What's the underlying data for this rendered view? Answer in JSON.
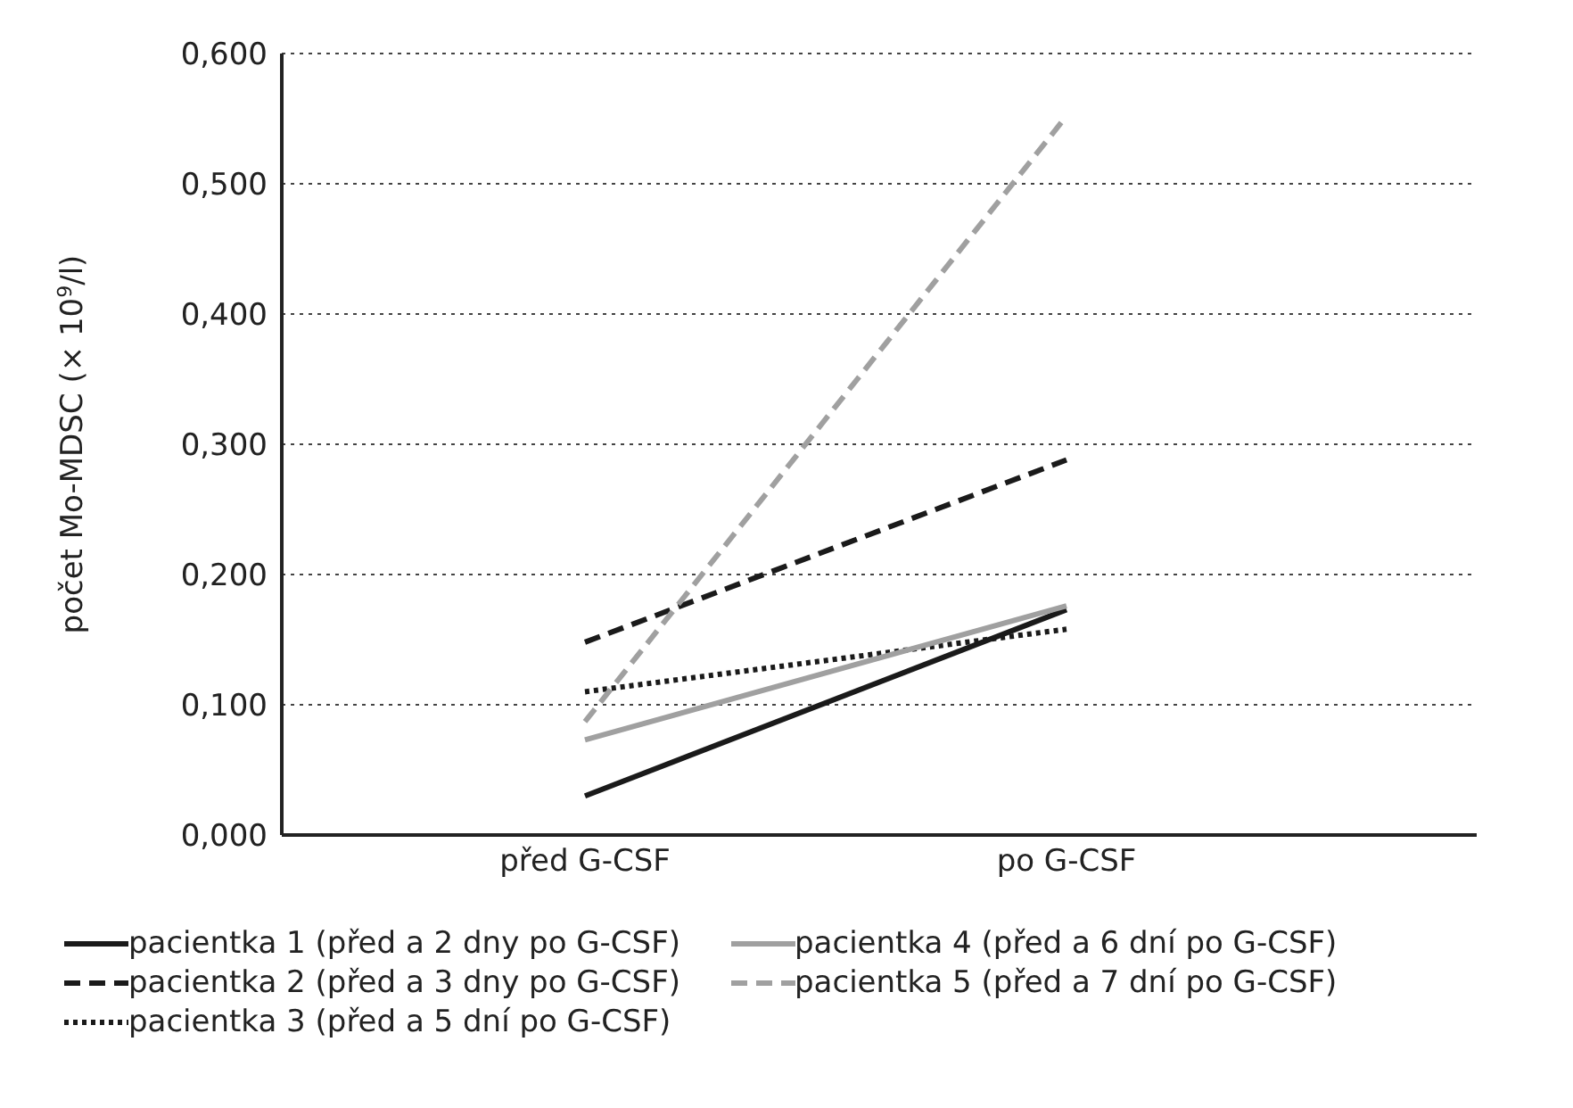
{
  "chart_data": {
    "type": "line",
    "ylabel": "počet Mo-MDSC  (× 10$^{9}$/l)",
    "categories": [
      "před G-CSF",
      "po G-CSF"
    ],
    "series": [
      {
        "name": "pacientka 1 (před a 2 dny po G-CSF)",
        "color": "#1a1a1a",
        "line_style": "solid",
        "values": [
          0.03,
          0.173
        ]
      },
      {
        "name": "pacientka 2 (před a 3 dny po G-CSF)",
        "color": "#1a1a1a",
        "line_style": "dashed",
        "values": [
          0.148,
          0.288
        ]
      },
      {
        "name": "pacientka 3 (před a 5 dní po G-CSF)",
        "color": "#1a1a1a",
        "line_style": "dotted",
        "values": [
          0.11,
          0.158
        ]
      },
      {
        "name": "pacientka 4 (před a 6 dní po G-CSF)",
        "color": "#a0a0a0",
        "line_style": "solid",
        "values": [
          0.073,
          0.176
        ]
      },
      {
        "name": "pacientka 5 (před a 7 dní po G-CSF)",
        "color": "#a0a0a0",
        "line_style": "dashed",
        "values": [
          0.087,
          0.552
        ]
      }
    ],
    "ylim": [
      0,
      0.6
    ],
    "yticks": [
      {
        "value": 0,
        "label": "0,000"
      },
      {
        "value": 0.1,
        "label": "0,100"
      },
      {
        "value": 0.2,
        "label": "0,200"
      },
      {
        "value": 0.3,
        "label": "0,300"
      },
      {
        "value": 0.4,
        "label": "0,400"
      },
      {
        "value": 0.5,
        "label": "0,500"
      },
      {
        "value": 0.6,
        "label": "0,600"
      }
    ],
    "grid": "y",
    "legend": "bottom",
    "marker": "none"
  }
}
